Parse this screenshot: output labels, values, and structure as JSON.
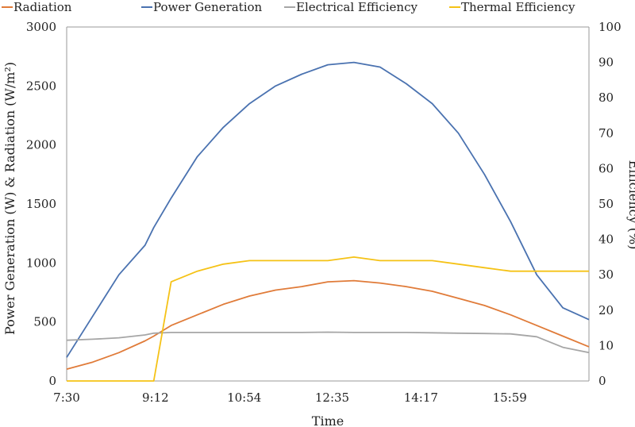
{
  "chart_data": {
    "type": "line",
    "xlabel": "Time",
    "ylabel_left": "Power Generation (W) & Radiation (W/m²)",
    "ylabel_right": "Efficiency (%)",
    "x_ticks": [
      "7:30",
      "9:12",
      "10:54",
      "12:35",
      "14:17",
      "15:59"
    ],
    "x_range": [
      "7:30",
      "17:30"
    ],
    "y_left_ticks": [
      "0",
      "500",
      "1000",
      "1500",
      "2000",
      "2500",
      "3000"
    ],
    "y_left_range": [
      0,
      3000
    ],
    "y_right_ticks": [
      "0",
      "10",
      "20",
      "30",
      "40",
      "50",
      "60",
      "70",
      "80",
      "90",
      "100"
    ],
    "y_right_range": [
      0,
      100
    ],
    "grid": false,
    "legend_position": "top",
    "x": [
      "7:30",
      "8:00",
      "8:30",
      "9:00",
      "9:10",
      "9:30",
      "10:00",
      "10:30",
      "11:00",
      "11:30",
      "12:00",
      "12:30",
      "13:00",
      "13:30",
      "14:00",
      "14:30",
      "15:00",
      "15:30",
      "16:00",
      "16:30",
      "17:00",
      "17:30"
    ],
    "series": [
      {
        "name": "Radiation",
        "axis": "left",
        "color": "#e07b39",
        "values": [
          100,
          160,
          240,
          340,
          380,
          470,
          560,
          650,
          720,
          770,
          800,
          840,
          850,
          830,
          800,
          760,
          700,
          640,
          560,
          470,
          380,
          290
        ]
      },
      {
        "name": "Power Generation",
        "axis": "left",
        "color": "#4a72b0",
        "values": [
          200,
          550,
          900,
          1150,
          1300,
          1550,
          1900,
          2150,
          2350,
          2500,
          2600,
          2680,
          2700,
          2660,
          2520,
          2350,
          2100,
          1750,
          1350,
          900,
          620,
          520
        ]
      },
      {
        "name": "Electrical Efficiency",
        "axis": "right",
        "color": "#a6a6a6",
        "values": [
          11.5,
          11.8,
          12.2,
          13,
          13.5,
          13.7,
          13.7,
          13.7,
          13.7,
          13.7,
          13.7,
          13.8,
          13.7,
          13.7,
          13.7,
          13.6,
          13.5,
          13.4,
          13.3,
          12.5,
          9.5,
          8
        ]
      },
      {
        "name": "Thermal Efficiency",
        "axis": "right",
        "color": "#f5c216",
        "values": [
          0,
          0,
          0,
          0,
          0,
          28,
          31,
          33,
          34,
          34,
          34,
          34,
          35,
          34,
          34,
          34,
          33,
          32,
          31,
          31,
          31,
          31
        ]
      }
    ]
  }
}
